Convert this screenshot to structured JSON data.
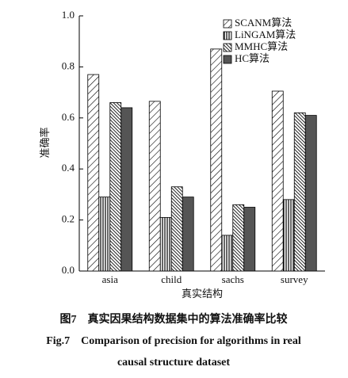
{
  "chart_data": {
    "type": "bar",
    "categories": [
      "asia",
      "child",
      "sachs",
      "survey"
    ],
    "series": [
      {
        "name": "SCANM算法",
        "pattern": "diagonal",
        "color": "#000000",
        "values": [
          0.77,
          0.665,
          0.87,
          0.705
        ]
      },
      {
        "name": "LiNGAM算法",
        "pattern": "vertical",
        "color": "#000000",
        "values": [
          0.29,
          0.21,
          0.14,
          0.28
        ]
      },
      {
        "name": "MMHC算法",
        "pattern": "backslash",
        "color": "#222222",
        "values": [
          0.66,
          0.33,
          0.26,
          0.62
        ]
      },
      {
        "name": "HC算法",
        "pattern": "solid",
        "color": "#555555",
        "values": [
          0.64,
          0.29,
          0.25,
          0.61
        ]
      }
    ],
    "ylim": [
      0,
      1.0
    ],
    "yticks": [
      {
        "value": 0,
        "label": "0.0"
      },
      {
        "value": 0.2,
        "label": "0.2"
      },
      {
        "value": 0.4,
        "label": "0.4"
      },
      {
        "value": 0.6,
        "label": "0.6"
      },
      {
        "value": 0.8,
        "label": "0.8"
      },
      {
        "value": 1.0,
        "label": "1.0"
      }
    ],
    "y_label": "准确率",
    "x_label": "真实结构",
    "legend": "top-right",
    "grid": false,
    "caption_cn": "图7　真实因果结构数据集中的算法准确率比较",
    "caption_en": [
      "Fig.7　Comparison of precision for algorithms in real",
      "causal structure dataset"
    ]
  }
}
